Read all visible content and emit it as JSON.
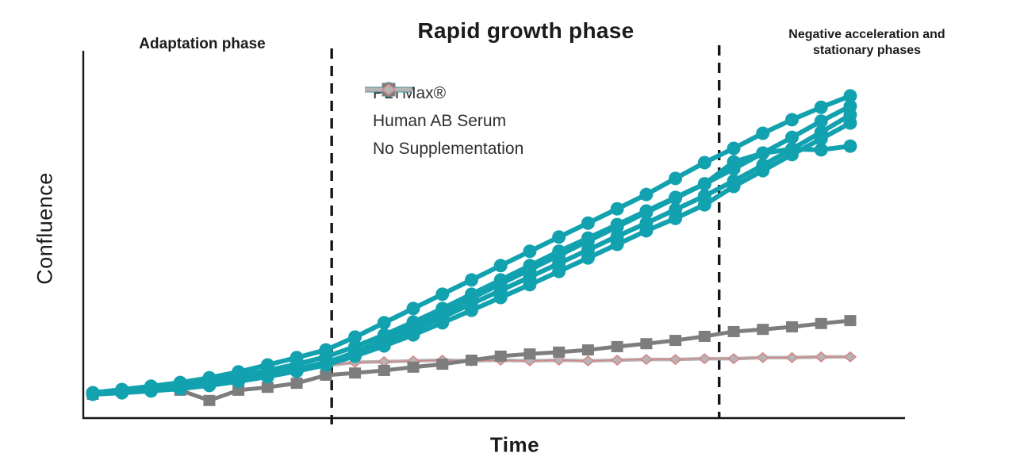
{
  "figure": {
    "y_axis_label": "Confluence",
    "x_axis_label": "Time",
    "phases": {
      "adaptation": "Adaptation phase",
      "rapid_growth": "Rapid growth phase",
      "negative_line1": "Negative acceleration and",
      "negative_line2": "stationary phases"
    },
    "colors": {
      "pltmax_teal": "#12a1af",
      "serum_gray": "#7d7d7d",
      "nosupp_gray": "#b4b4b6",
      "nosupp_accent_pink": "#d98383",
      "axis_black": "#161616",
      "text_black": "#1b1b1b"
    }
  },
  "legend": [
    {
      "label": "PLTMax®",
      "marker": "circle",
      "color": "#12a1af"
    },
    {
      "label": "Human AB Serum",
      "marker": "square",
      "color": "#7d7d7d"
    },
    {
      "label": "No Supplementation",
      "marker": "diamond",
      "color": "#b4b4b6",
      "accent": "#d98383"
    }
  ],
  "chart_data": {
    "type": "line",
    "title": "",
    "xlabel": "Time",
    "ylabel": "Confluence",
    "x": [
      0,
      1,
      2,
      3,
      4,
      5,
      6,
      7,
      8,
      9,
      10,
      11,
      12,
      13,
      14,
      15,
      16,
      17,
      18,
      19,
      20,
      21,
      22,
      23,
      24,
      25,
      26
    ],
    "xlim": [
      -0.35,
      27.9
    ],
    "ylim": [
      0,
      100
    ],
    "grid": false,
    "legend_position": "upper-left-inside",
    "x_axis_ticks": "none (unlabeled time axis)",
    "y_axis_ticks": "none (unlabeled confluence axis, arbitrary 0-100 units)",
    "phase_boundaries_x": [
      8.2,
      21.5
    ],
    "phase_annotations": [
      {
        "label": "Adaptation phase",
        "x_range": [
          -0.35,
          8.2
        ]
      },
      {
        "label": "Rapid growth phase",
        "x_range": [
          8.2,
          21.5
        ]
      },
      {
        "label": "Negative acceleration and stationary phases",
        "x_range": [
          21.5,
          27.9
        ]
      }
    ],
    "series": [
      {
        "name": "PLTMax® replicate 1",
        "group": "PLTMax®",
        "marker": "circle",
        "color": "#12a1af",
        "values": [
          6.9,
          7.8,
          8.7,
          9.7,
          11.0,
          12.6,
          14.5,
          16.5,
          18.6,
          22.1,
          26.0,
          29.9,
          33.8,
          37.7,
          41.6,
          45.5,
          49.4,
          53.2,
          57.1,
          61.0,
          65.4,
          69.7,
          73.6,
          77.7,
          81.4,
          84.8,
          87.9
        ]
      },
      {
        "name": "PLTMax® replicate 2",
        "group": "PLTMax®",
        "marker": "circle",
        "color": "#12a1af",
        "values": [
          6.9,
          7.6,
          8.2,
          9.1,
          10.2,
          11.5,
          13.0,
          14.7,
          16.7,
          19.5,
          22.7,
          26.2,
          29.9,
          33.8,
          37.7,
          41.6,
          45.5,
          49.1,
          52.8,
          56.5,
          60.2,
          63.9,
          68.0,
          72.3,
          76.6,
          81.0,
          85.1
        ]
      },
      {
        "name": "PLTMax® replicate 3",
        "group": "PLTMax®",
        "marker": "circle",
        "color": "#12a1af",
        "values": [
          6.7,
          7.4,
          8.0,
          8.7,
          9.5,
          10.6,
          11.9,
          13.4,
          15.2,
          17.7,
          20.8,
          24.0,
          27.5,
          31.2,
          34.8,
          38.5,
          42.2,
          45.9,
          49.6,
          53.2,
          56.9,
          60.6,
          64.7,
          69.0,
          73.4,
          78.0,
          82.7
        ]
      },
      {
        "name": "PLTMax® replicate 4",
        "group": "PLTMax®",
        "marker": "circle",
        "color": "#12a1af",
        "values": [
          6.7,
          7.1,
          7.8,
          8.4,
          9.3,
          10.2,
          11.5,
          12.8,
          14.5,
          16.9,
          19.7,
          22.7,
          26.0,
          29.4,
          32.9,
          36.4,
          40.0,
          43.7,
          47.4,
          51.1,
          54.5,
          58.2,
          63.2,
          67.5,
          71.9,
          76.2,
          80.5
        ]
      },
      {
        "name": "PLTMax® replicate 5",
        "group": "PLTMax®",
        "marker": "circle",
        "color": "#12a1af",
        "values": [
          6.5,
          6.9,
          7.4,
          8.0,
          8.9,
          10.0,
          11.3,
          12.8,
          14.9,
          18.0,
          21.4,
          25.1,
          28.8,
          32.7,
          36.6,
          40.5,
          44.4,
          48.3,
          52.2,
          56.1,
          60.0,
          63.9,
          69.9,
          72.3,
          73.4,
          73.2,
          74.2
        ]
      },
      {
        "name": "Human AB Serum",
        "group": "Human AB Serum",
        "marker": "square",
        "color": "#7d7d7d",
        "values": [
          6.5,
          7.4,
          8.2,
          7.6,
          4.8,
          7.6,
          8.4,
          9.5,
          11.7,
          12.3,
          13.0,
          13.9,
          14.7,
          15.8,
          16.9,
          17.5,
          18.0,
          18.6,
          19.5,
          20.3,
          21.2,
          22.3,
          23.6,
          24.2,
          24.9,
          25.8,
          26.6
        ]
      },
      {
        "name": "No Supplementation",
        "group": "No Supplementation",
        "marker": "diamond",
        "color": "#b4b4b6",
        "accent": "#d98383",
        "values": [
          6.3,
          7.1,
          8.0,
          8.9,
          10.0,
          11.0,
          12.1,
          13.2,
          14.3,
          15.2,
          15.4,
          15.6,
          15.8,
          15.6,
          15.8,
          15.6,
          15.8,
          15.6,
          15.8,
          16.0,
          16.0,
          16.2,
          16.2,
          16.5,
          16.5,
          16.7,
          16.7
        ]
      }
    ]
  }
}
